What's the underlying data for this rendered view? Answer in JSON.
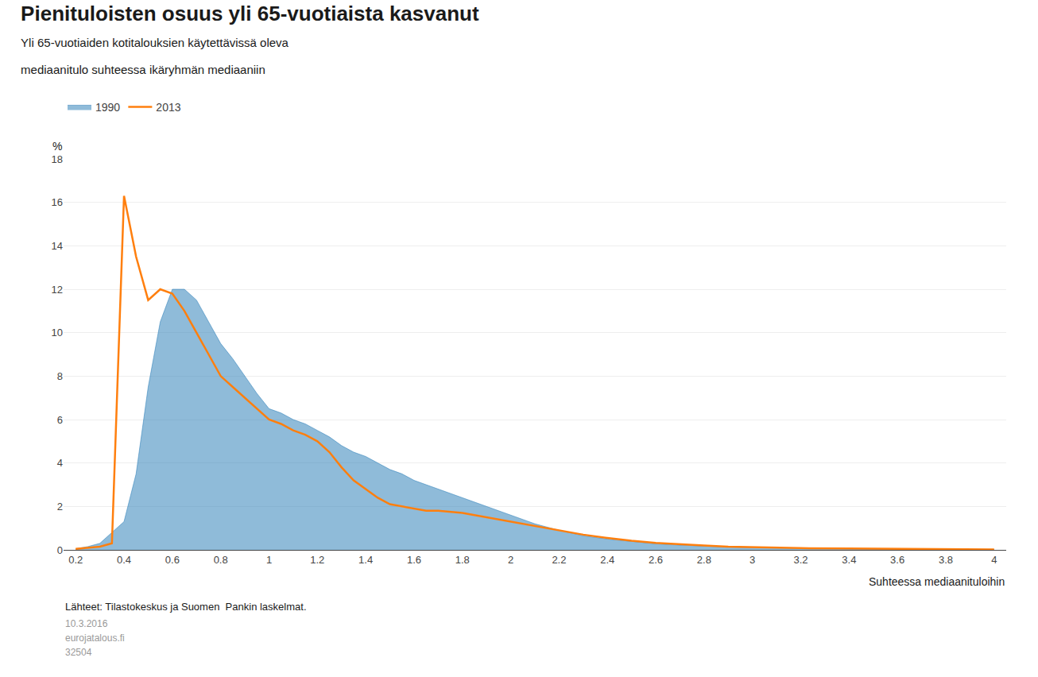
{
  "chart_data": {
    "type": "line",
    "title": "Pienituloisten osuus yli 65-vuotiaista kasvanut",
    "subtitle": [
      "Yli 65-vuotiaiden kotitalouksien käytettävissä oleva",
      "mediaanitulo suhteessa ikäryhmän mediaaniin"
    ],
    "xlabel": "Suhteessa mediaanituloihin",
    "ylabel": "%",
    "annotations": [
      "Lähteet: Tilastokeskus ja Suomen  Pankin laskelmat.",
      "10.3.2016",
      "eurojatalous.fi",
      "32504"
    ],
    "xlim": [
      0.15,
      4.05
    ],
    "xticks": [
      0.2,
      0.4,
      0.6,
      0.8,
      1,
      1.2,
      1.4,
      1.6,
      1.8,
      2,
      2.2,
      2.4,
      2.6,
      2.8,
      3,
      3.2,
      3.4,
      3.6,
      3.8,
      4
    ],
    "ylim": [
      0,
      18
    ],
    "yticks": [
      0,
      2,
      4,
      6,
      8,
      10,
      12,
      14,
      16,
      18
    ],
    "grid": "y",
    "legend": "upper left",
    "series": [
      {
        "name": "1990",
        "type": "area",
        "x": [
          0.2,
          0.25,
          0.3,
          0.35,
          0.4,
          0.45,
          0.5,
          0.55,
          0.6,
          0.65,
          0.7,
          0.75,
          0.8,
          0.85,
          0.9,
          0.95,
          1.0,
          1.05,
          1.1,
          1.15,
          1.2,
          1.25,
          1.3,
          1.35,
          1.4,
          1.45,
          1.5,
          1.55,
          1.6,
          1.65,
          1.7,
          1.75,
          1.8,
          1.85,
          1.9,
          1.95,
          2.0,
          2.1,
          2.2,
          2.3,
          2.4,
          2.5,
          2.6,
          2.7,
          2.8,
          2.9,
          3.0,
          3.2,
          3.4,
          3.6,
          3.8,
          4.0
        ],
        "values": [
          0.05,
          0.15,
          0.3,
          0.8,
          1.3,
          3.5,
          7.5,
          10.5,
          12.0,
          12.0,
          11.5,
          10.5,
          9.5,
          8.8,
          8.0,
          7.2,
          6.5,
          6.3,
          6.0,
          5.8,
          5.5,
          5.2,
          4.8,
          4.5,
          4.3,
          4.0,
          3.7,
          3.5,
          3.2,
          3.0,
          2.8,
          2.6,
          2.4,
          2.2,
          2.0,
          1.8,
          1.6,
          1.2,
          0.9,
          0.65,
          0.5,
          0.38,
          0.28,
          0.22,
          0.17,
          0.13,
          0.1,
          0.07,
          0.05,
          0.04,
          0.03,
          0.02
        ]
      },
      {
        "name": "2013",
        "type": "line",
        "x": [
          0.2,
          0.25,
          0.3,
          0.35,
          0.4,
          0.45,
          0.5,
          0.55,
          0.6,
          0.65,
          0.7,
          0.75,
          0.8,
          0.85,
          0.9,
          0.95,
          1.0,
          1.05,
          1.1,
          1.15,
          1.2,
          1.25,
          1.3,
          1.35,
          1.4,
          1.45,
          1.5,
          1.55,
          1.6,
          1.65,
          1.7,
          1.75,
          1.8,
          1.85,
          1.9,
          1.95,
          2.0,
          2.05,
          2.1,
          2.15,
          2.2,
          2.3,
          2.4,
          2.5,
          2.6,
          2.7,
          2.8,
          2.9,
          3.0,
          3.2,
          3.4,
          3.6,
          3.8,
          4.0
        ],
        "values": [
          0.05,
          0.1,
          0.15,
          0.3,
          16.3,
          13.5,
          11.5,
          12.0,
          11.8,
          11.0,
          10.0,
          9.0,
          8.0,
          7.5,
          7.0,
          6.5,
          6.0,
          5.8,
          5.5,
          5.3,
          5.0,
          4.5,
          3.8,
          3.2,
          2.8,
          2.4,
          2.1,
          2.0,
          1.9,
          1.8,
          1.8,
          1.75,
          1.7,
          1.6,
          1.5,
          1.4,
          1.3,
          1.2,
          1.1,
          1.0,
          0.9,
          0.7,
          0.55,
          0.42,
          0.32,
          0.25,
          0.2,
          0.15,
          0.12,
          0.08,
          0.06,
          0.04,
          0.03,
          0.02
        ]
      }
    ]
  }
}
